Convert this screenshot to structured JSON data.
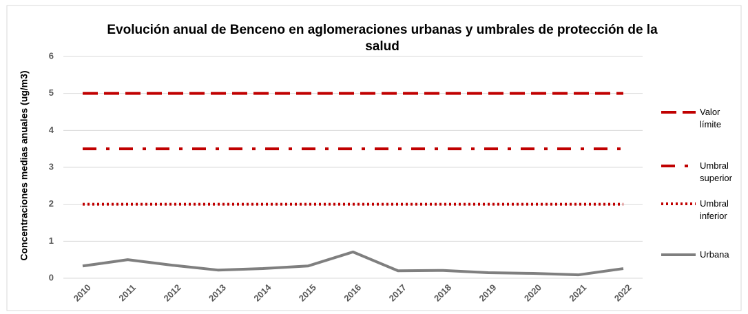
{
  "chart_data": {
    "type": "line",
    "title": "Evolución anual de Benceno en aglomeraciones urbanas y umbrales de protección de la salud",
    "y_label": "Concentraciones medias anuales (ug/m3)",
    "categories": [
      "2010",
      "2011",
      "2012",
      "2013",
      "2014",
      "2015",
      "2016",
      "2017",
      "2018",
      "2019",
      "2020",
      "2021",
      "2022"
    ],
    "series": [
      {
        "name": "Valor límite",
        "color": "#c00000",
        "dash": "long-dash",
        "values": [
          5,
          5,
          5,
          5,
          5,
          5,
          5,
          5,
          5,
          5,
          5,
          5,
          5
        ]
      },
      {
        "name": "Umbral superior",
        "color": "#c00000",
        "dash": "dash-dot",
        "values": [
          3.5,
          3.5,
          3.5,
          3.5,
          3.5,
          3.5,
          3.5,
          3.5,
          3.5,
          3.5,
          3.5,
          3.5,
          3.5
        ]
      },
      {
        "name": "Umbral inferior",
        "color": "#c00000",
        "dash": "dot",
        "values": [
          2,
          2,
          2,
          2,
          2,
          2,
          2,
          2,
          2,
          2,
          2,
          2,
          2
        ]
      },
      {
        "name": "Urbana",
        "color": "#7f7f7f",
        "dash": "solid",
        "values": [
          0.33,
          0.5,
          0.35,
          0.22,
          0.26,
          0.33,
          0.71,
          0.2,
          0.21,
          0.15,
          0.13,
          0.09,
          0.26
        ]
      }
    ],
    "ylim": [
      0,
      6
    ],
    "yticks": [
      0,
      1,
      2,
      3,
      4,
      5,
      6
    ],
    "grid": true,
    "legend": "right"
  }
}
